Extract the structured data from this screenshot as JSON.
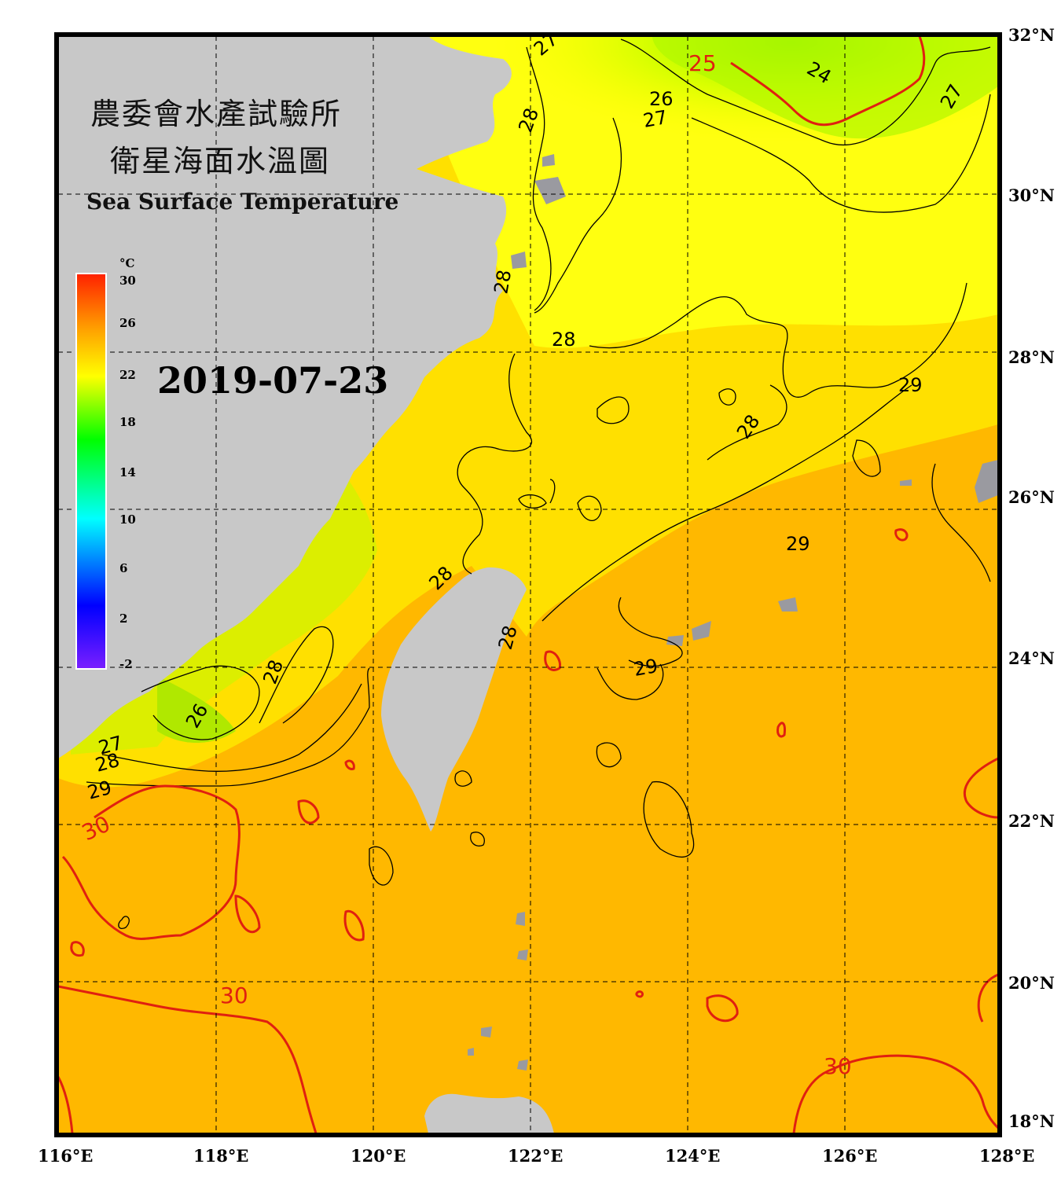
{
  "title": {
    "line1": "農委會水產試驗所",
    "line2": "衛星海面水溫圖",
    "english": "Sea Surface Temperature"
  },
  "date": "2019-07-23",
  "colorbar": {
    "unit": "°C",
    "ticks": [
      "30",
      "26",
      "22",
      "18",
      "14",
      "10",
      "6",
      "2",
      "-2"
    ],
    "range": [
      -2,
      30
    ],
    "colors": [
      "#7a1fff",
      "#0000ff",
      "#00ffff",
      "#00ff00",
      "#ffff00",
      "#ffa000",
      "#ff2000"
    ]
  },
  "latitude_labels": [
    "32°N",
    "30°N",
    "28°N",
    "26°N",
    "24°N",
    "22°N",
    "20°N",
    "18°N"
  ],
  "longitude_labels": [
    "116°E",
    "118°E",
    "120°E",
    "122°E",
    "124°E",
    "126°E",
    "128°E"
  ],
  "contour_labels": {
    "black": [
      "27",
      "28",
      "26",
      "27",
      "24",
      "27",
      "28",
      "28",
      "28",
      "29",
      "28",
      "28",
      "29",
      "29",
      "28",
      "26",
      "27",
      "28",
      "29"
    ],
    "red": [
      "25",
      "30",
      "30",
      "30"
    ]
  },
  "colors": {
    "land": "#c8c8c8",
    "frame": "#000000",
    "contour_red": "#e02010",
    "sea_warm": "#ffb000",
    "sea_mid": "#ffee00",
    "sea_cool": "#a8ff00"
  }
}
